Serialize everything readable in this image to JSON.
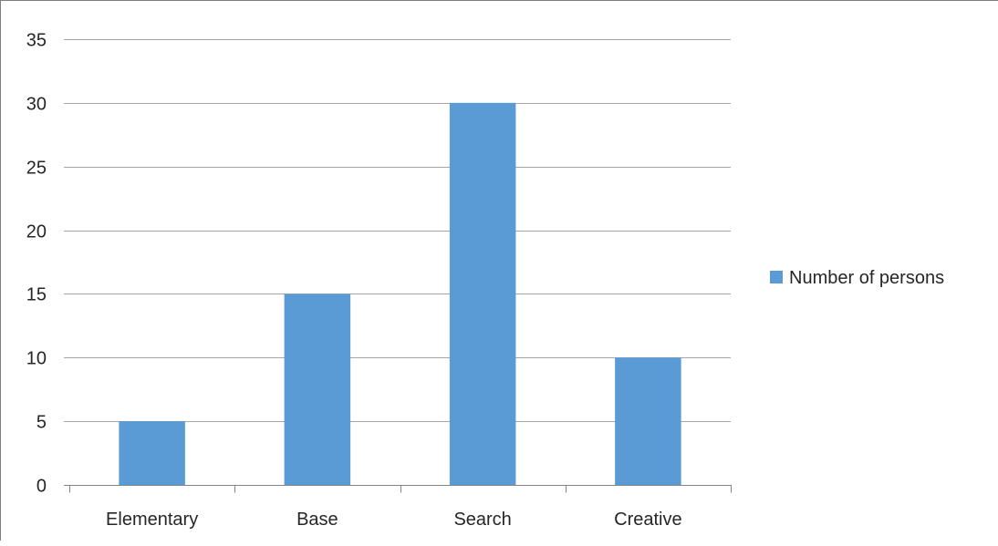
{
  "chart_data": {
    "type": "bar",
    "categories": [
      "Elementary",
      "Base",
      "Search",
      "Creative"
    ],
    "series": [
      {
        "name": "Number of persons",
        "values": [
          5,
          15,
          30,
          10
        ],
        "color": "#5b9bd5"
      }
    ],
    "title": "",
    "xlabel": "",
    "ylabel": "",
    "ylim": [
      0,
      35
    ],
    "yticks": [
      "0",
      "5",
      "10",
      "15",
      "20",
      "25",
      "30",
      "35"
    ],
    "grid": true,
    "legend_position": "right",
    "colors": {
      "grid": "#a6a6a6",
      "axis": "#868686",
      "bar": "#5b9bd5",
      "text": "#262626"
    }
  }
}
